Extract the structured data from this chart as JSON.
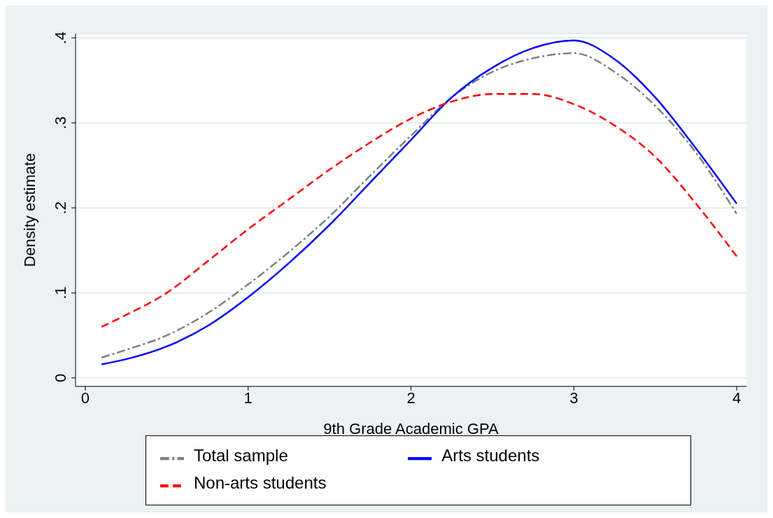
{
  "chart_data": {
    "type": "line",
    "xlabel": "9th Grade Academic GPA",
    "ylabel": "Density estimate",
    "x": [
      0.1,
      0.25,
      0.5,
      0.75,
      1,
      1.25,
      1.5,
      1.75,
      2,
      2.25,
      2.5,
      2.75,
      3,
      3.25,
      3.5,
      3.75,
      4
    ],
    "series": [
      {
        "name": "Total sample",
        "color": "#808080",
        "line_style": "dashdot",
        "values": [
          0.024,
          0.033,
          0.05,
          0.076,
          0.11,
          0.148,
          0.19,
          0.238,
          0.285,
          0.33,
          0.36,
          0.376,
          0.382,
          0.36,
          0.32,
          0.265,
          0.193
        ]
      },
      {
        "name": "Arts students",
        "color": "#0000ff",
        "line_style": "solid",
        "values": [
          0.016,
          0.022,
          0.037,
          0.061,
          0.095,
          0.135,
          0.18,
          0.23,
          0.28,
          0.33,
          0.365,
          0.388,
          0.397,
          0.375,
          0.33,
          0.27,
          0.205
        ]
      },
      {
        "name": "Non-arts students",
        "color": "#ff0000",
        "line_style": "dashed",
        "values": [
          0.06,
          0.074,
          0.1,
          0.137,
          0.175,
          0.21,
          0.245,
          0.277,
          0.305,
          0.325,
          0.334,
          0.334,
          0.322,
          0.297,
          0.26,
          0.205,
          0.143
        ]
      }
    ],
    "xlim": [
      -0.06,
      4.06
    ],
    "xticks": [
      0,
      1,
      2,
      3,
      4
    ],
    "ylim": [
      -0.01,
      0.405
    ],
    "yticks": [
      {
        "value": 0,
        "label": "0"
      },
      {
        "value": 0.1,
        "label": ".1"
      },
      {
        "value": 0.2,
        "label": ".2"
      },
      {
        "value": 0.3,
        "label": ".3"
      },
      {
        "value": 0.4,
        "label": ".4"
      }
    ],
    "grid": "y",
    "legend": "bottom"
  }
}
